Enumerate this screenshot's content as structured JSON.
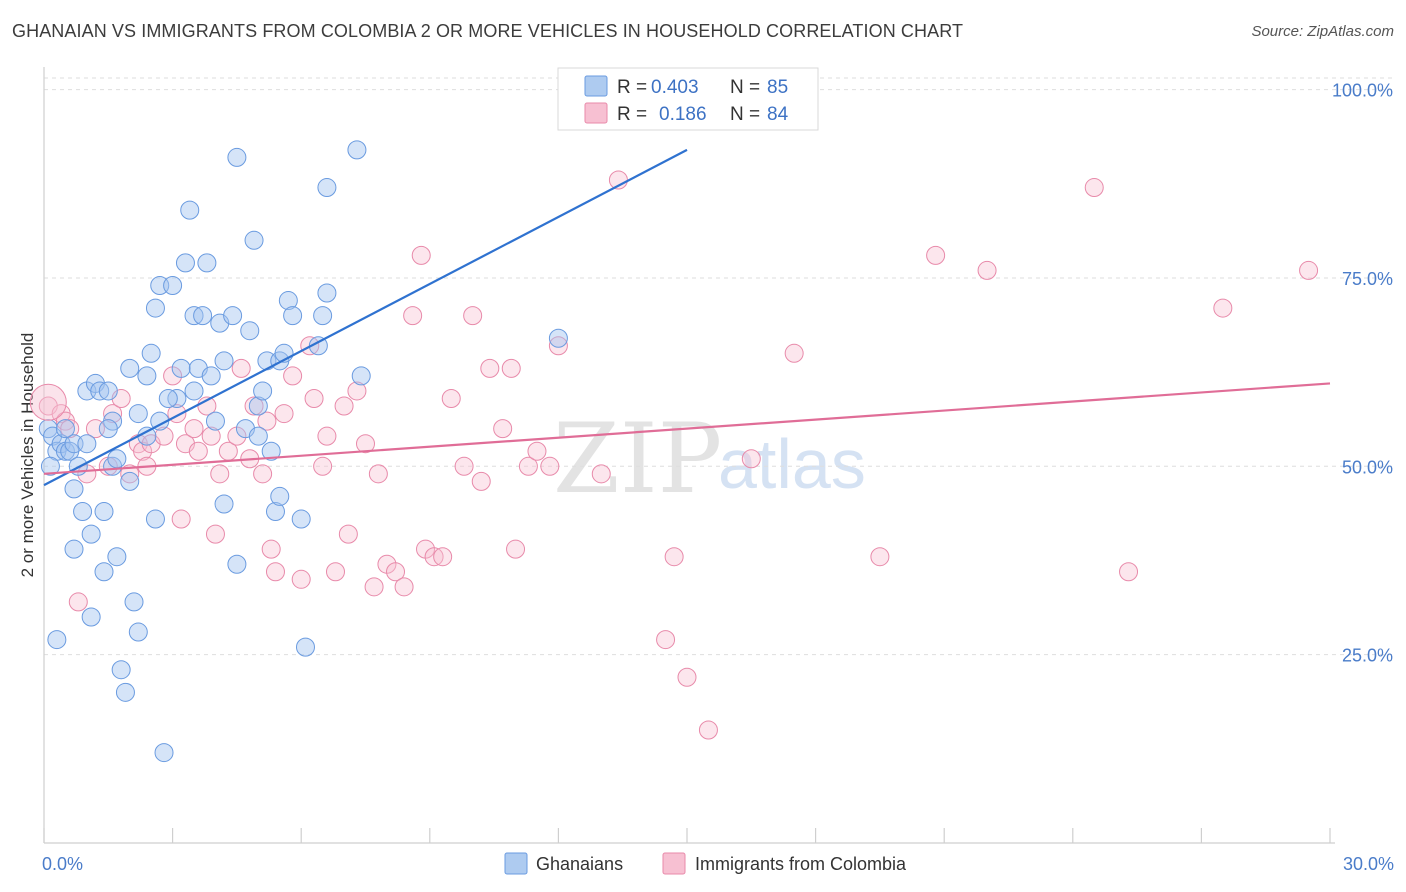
{
  "title": "GHANAIAN VS IMMIGRANTS FROM COLOMBIA 2 OR MORE VEHICLES IN HOUSEHOLD CORRELATION CHART",
  "source": "Source: ZipAtlas.com",
  "watermark": {
    "zip": "ZIP",
    "atlas": "atlas"
  },
  "legend": {
    "r_label": "R =",
    "n_label": "N =",
    "rows": [
      {
        "r": "0.403",
        "n": "85",
        "color": "#aecbf0"
      },
      {
        "r": "0.186",
        "n": "84",
        "color": "#f7c0d2"
      }
    ]
  },
  "bottom_legend": [
    "Ghanaians",
    "Immigrants from Colombia"
  ],
  "chart_data": {
    "type": "scatter",
    "title": "GHANAIAN VS IMMIGRANTS FROM COLOMBIA 2 OR MORE VEHICLES IN HOUSEHOLD CORRELATION CHART",
    "xlabel": "",
    "ylabel": "2 or more Vehicles in Household",
    "xlim": [
      0,
      30
    ],
    "ylim": [
      0,
      103
    ],
    "x_tick_labels": [
      "0.0%",
      "30.0%"
    ],
    "y_tick_labels": [
      "100.0%",
      "75.0%",
      "50.0%",
      "25.0%"
    ],
    "y_ticks": [
      100,
      75,
      50,
      25
    ],
    "grid": true,
    "legend_position": "top-center",
    "series": [
      {
        "name": "Ghanaians",
        "color": "#6a9be0",
        "fill": "rgba(162,196,240,0.45)",
        "trend": {
          "x": [
            0,
            15
          ],
          "y": [
            47.5,
            92
          ]
        },
        "points": [
          [
            0.1,
            55
          ],
          [
            0.2,
            54
          ],
          [
            0.3,
            52
          ],
          [
            0.3,
            27
          ],
          [
            0.4,
            53
          ],
          [
            0.5,
            52
          ],
          [
            0.6,
            52
          ],
          [
            0.7,
            53
          ],
          [
            0.7,
            47
          ],
          [
            0.7,
            39
          ],
          [
            0.8,
            50
          ],
          [
            0.9,
            44
          ],
          [
            1.0,
            60
          ],
          [
            1.1,
            41
          ],
          [
            1.1,
            30
          ],
          [
            1.2,
            61
          ],
          [
            1.3,
            60
          ],
          [
            1.4,
            44
          ],
          [
            1.4,
            36
          ],
          [
            1.5,
            60
          ],
          [
            1.6,
            50
          ],
          [
            1.6,
            56
          ],
          [
            1.7,
            51
          ],
          [
            1.7,
            38
          ],
          [
            1.8,
            23
          ],
          [
            1.9,
            20
          ],
          [
            2.0,
            63
          ],
          [
            2.1,
            32
          ],
          [
            2.2,
            28
          ],
          [
            2.2,
            57
          ],
          [
            2.4,
            54
          ],
          [
            2.4,
            62
          ],
          [
            2.5,
            65
          ],
          [
            2.6,
            71
          ],
          [
            2.6,
            43
          ],
          [
            2.7,
            74
          ],
          [
            2.7,
            56
          ],
          [
            2.8,
            12
          ],
          [
            3.0,
            74
          ],
          [
            3.1,
            59
          ],
          [
            3.2,
            63
          ],
          [
            3.3,
            77
          ],
          [
            3.4,
            84
          ],
          [
            3.5,
            70
          ],
          [
            3.6,
            63
          ],
          [
            3.7,
            70
          ],
          [
            3.8,
            77
          ],
          [
            3.9,
            62
          ],
          [
            4.0,
            56
          ],
          [
            4.1,
            69
          ],
          [
            4.2,
            45
          ],
          [
            4.4,
            70
          ],
          [
            4.5,
            37
          ],
          [
            4.5,
            91
          ],
          [
            4.7,
            55
          ],
          [
            4.8,
            68
          ],
          [
            4.9,
            80
          ],
          [
            5.0,
            58
          ],
          [
            5.1,
            60
          ],
          [
            5.2,
            64
          ],
          [
            5.3,
            52
          ],
          [
            5.4,
            44
          ],
          [
            5.5,
            64
          ],
          [
            5.5,
            46
          ],
          [
            5.6,
            65
          ],
          [
            5.7,
            72
          ],
          [
            5.8,
            70
          ],
          [
            6.0,
            43
          ],
          [
            6.1,
            26
          ],
          [
            6.4,
            66
          ],
          [
            6.5,
            70
          ],
          [
            6.6,
            73
          ],
          [
            6.6,
            87
          ],
          [
            7.3,
            92
          ],
          [
            7.4,
            62
          ],
          [
            12.0,
            67
          ],
          [
            0.15,
            50
          ],
          [
            0.5,
            55
          ],
          [
            1.0,
            53
          ],
          [
            2.0,
            48
          ],
          [
            3.5,
            60
          ],
          [
            4.2,
            64
          ],
          [
            5.0,
            54
          ],
          [
            2.9,
            59
          ],
          [
            1.5,
            55
          ]
        ]
      },
      {
        "name": "Immigrants from Colombia",
        "color": "#e88aaa",
        "fill": "rgba(247,192,210,0.40)",
        "trend": {
          "x": [
            0,
            30
          ],
          "y": [
            49,
            61
          ]
        },
        "points": [
          [
            0.1,
            58
          ],
          [
            0.4,
            57
          ],
          [
            0.5,
            56
          ],
          [
            0.6,
            55
          ],
          [
            0.8,
            32
          ],
          [
            1.0,
            49
          ],
          [
            1.2,
            55
          ],
          [
            1.5,
            50
          ],
          [
            1.6,
            57
          ],
          [
            1.8,
            59
          ],
          [
            2.0,
            49
          ],
          [
            2.2,
            53
          ],
          [
            2.3,
            52
          ],
          [
            2.4,
            50
          ],
          [
            2.5,
            53
          ],
          [
            2.8,
            54
          ],
          [
            3.0,
            62
          ],
          [
            3.1,
            57
          ],
          [
            3.2,
            43
          ],
          [
            3.3,
            53
          ],
          [
            3.5,
            55
          ],
          [
            3.6,
            52
          ],
          [
            3.8,
            58
          ],
          [
            3.9,
            54
          ],
          [
            4.0,
            41
          ],
          [
            4.1,
            49
          ],
          [
            4.3,
            52
          ],
          [
            4.5,
            54
          ],
          [
            4.6,
            63
          ],
          [
            4.8,
            51
          ],
          [
            4.9,
            58
          ],
          [
            5.1,
            49
          ],
          [
            5.2,
            56
          ],
          [
            5.3,
            39
          ],
          [
            5.4,
            36
          ],
          [
            5.6,
            57
          ],
          [
            5.8,
            62
          ],
          [
            6.0,
            35
          ],
          [
            6.2,
            66
          ],
          [
            6.3,
            59
          ],
          [
            6.5,
            50
          ],
          [
            6.6,
            54
          ],
          [
            6.8,
            36
          ],
          [
            7.0,
            58
          ],
          [
            7.1,
            41
          ],
          [
            7.3,
            60
          ],
          [
            7.5,
            53
          ],
          [
            7.7,
            34
          ],
          [
            7.8,
            49
          ],
          [
            8.0,
            37
          ],
          [
            8.2,
            36
          ],
          [
            8.4,
            34
          ],
          [
            8.6,
            70
          ],
          [
            8.8,
            78
          ],
          [
            8.9,
            39
          ],
          [
            9.1,
            38
          ],
          [
            9.3,
            38
          ],
          [
            9.5,
            59
          ],
          [
            9.8,
            50
          ],
          [
            10.0,
            70
          ],
          [
            10.2,
            48
          ],
          [
            10.4,
            63
          ],
          [
            10.7,
            55
          ],
          [
            10.9,
            63
          ],
          [
            11.0,
            39
          ],
          [
            11.3,
            50
          ],
          [
            11.5,
            52
          ],
          [
            11.8,
            50
          ],
          [
            12.0,
            66
          ],
          [
            13.0,
            49
          ],
          [
            13.4,
            88
          ],
          [
            14.5,
            27
          ],
          [
            14.7,
            38
          ],
          [
            15.0,
            22
          ],
          [
            15.5,
            15
          ],
          [
            16.5,
            51
          ],
          [
            17.5,
            65
          ],
          [
            19.5,
            38
          ],
          [
            20.8,
            78
          ],
          [
            22.0,
            76
          ],
          [
            24.5,
            87
          ],
          [
            25.3,
            36
          ],
          [
            27.5,
            71
          ],
          [
            29.5,
            76
          ]
        ]
      }
    ]
  }
}
